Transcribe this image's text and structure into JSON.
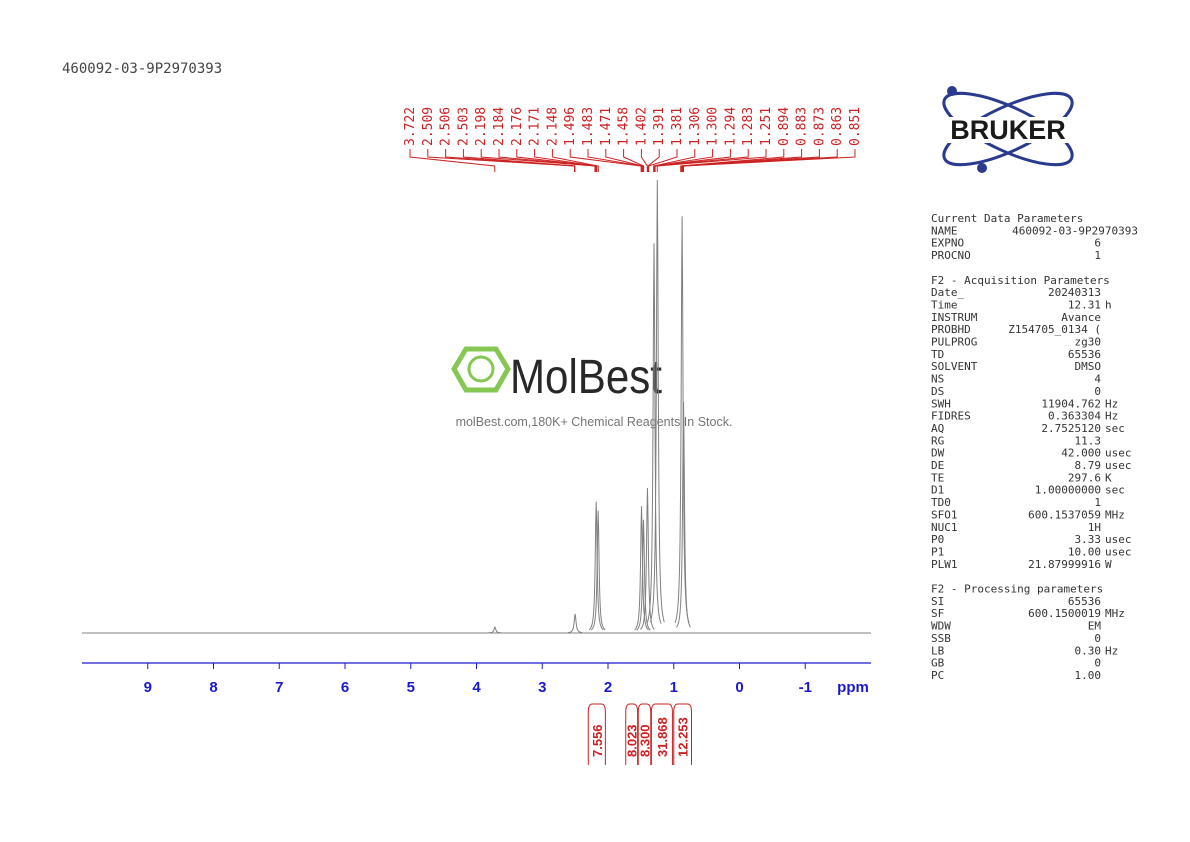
{
  "chart_data": {
    "type": "nmr",
    "title": "460092-03-9P2970393",
    "x_label": "ppm",
    "xlim": [
      10,
      -2
    ],
    "xticks": [
      9,
      8,
      7,
      6,
      5,
      4,
      3,
      2,
      1,
      0,
      -1
    ],
    "ylim": [
      0,
      100
    ],
    "color": "#808080",
    "label_color": "#cc2222",
    "axis_color": "#1a1acc",
    "peaks": {
      "x": [
        3.72,
        2.5,
        2.18,
        2.15,
        1.49,
        1.46,
        1.4,
        1.3,
        1.25,
        0.873,
        0.851
      ],
      "values": [
        1.3,
        4.2,
        29,
        27,
        28,
        25,
        32,
        86,
        100,
        92,
        51
      ]
    },
    "peak_picks": {
      "values": [
        3.722,
        2.509,
        2.506,
        2.503,
        2.198,
        2.184,
        2.176,
        2.171,
        2.148,
        1.496,
        1.483,
        1.471,
        1.458,
        1.402,
        1.391,
        1.381,
        1.306,
        1.3,
        1.294,
        1.283,
        1.251,
        0.894,
        0.883,
        0.873,
        0.863,
        0.851
      ],
      "value_labels": [
        "3.722",
        "2.509",
        "2.506",
        "2.503",
        "2.198",
        "2.184",
        "2.176",
        "2.171",
        "2.148",
        "1.496",
        "1.483",
        "1.471",
        "1.458",
        "1.402",
        "1.391",
        "1.381",
        "1.306",
        "1.300",
        "1.294",
        "1.283",
        "1.251",
        "0.894",
        "0.883",
        "0.873",
        "0.863",
        "0.851"
      ]
    },
    "integrals": {
      "from": [
        2.3,
        1.73,
        1.54,
        1.34,
        1.0
      ],
      "to": [
        2.04,
        1.55,
        1.35,
        1.02,
        0.73
      ],
      "values": [
        7.556,
        8.023,
        8.3,
        31.868,
        12.253
      ],
      "value_labels": [
        "7.556",
        "8.023",
        "8.300",
        "31.868",
        "12.253"
      ]
    }
  },
  "logo": "BRUKER",
  "watermark": {
    "brand": "MolBest",
    "tagline": "molBest.com,180K+ Chemical Reagents In Stock."
  },
  "parameters": [
    {
      "title": "Current Data Parameters",
      "rows": [
        [
          "NAME",
          "460092-03-9P2970393"
        ],
        [
          "EXPNO",
          "6"
        ],
        [
          "PROCNO",
          "1"
        ]
      ]
    },
    {
      "title": "F2 - Acquisition Parameters",
      "rows": [
        [
          "Date_",
          "20240313"
        ],
        [
          "Time",
          "12.31",
          "h"
        ],
        [
          "INSTRUM",
          "Avance"
        ],
        [
          "PROBHD",
          "Z154705_0134 ("
        ],
        [
          "PULPROG",
          "zg30"
        ],
        [
          "TD",
          "65536"
        ],
        [
          "SOLVENT",
          "DMSO"
        ],
        [
          "NS",
          "4"
        ],
        [
          "DS",
          "0"
        ],
        [
          "SWH",
          "11904.762",
          "Hz"
        ],
        [
          "FIDRES",
          "0.363304",
          "Hz"
        ],
        [
          "AQ",
          "2.7525120",
          "sec"
        ],
        [
          "RG",
          "11.3"
        ],
        [
          "DW",
          "42.000",
          "usec"
        ],
        [
          "DE",
          "8.79",
          "usec"
        ],
        [
          "TE",
          "297.6",
          "K"
        ],
        [
          "D1",
          "1.00000000",
          "sec"
        ],
        [
          "TD0",
          "1"
        ],
        [
          "SFO1",
          "600.1537059",
          "MHz"
        ],
        [
          "NUC1",
          "1H"
        ],
        [
          "P0",
          "3.33",
          "usec"
        ],
        [
          "P1",
          "10.00",
          "usec"
        ],
        [
          "PLW1",
          "21.87999916",
          "W"
        ]
      ]
    },
    {
      "title": "F2 - Processing parameters",
      "rows": [
        [
          "SI",
          "65536"
        ],
        [
          "SF",
          "600.1500019",
          "MHz"
        ],
        [
          "WDW",
          "EM"
        ],
        [
          "SSB",
          "0"
        ],
        [
          "LB",
          "0.30",
          "Hz"
        ],
        [
          "GB",
          "0"
        ],
        [
          "PC",
          "1.00"
        ]
      ]
    }
  ]
}
